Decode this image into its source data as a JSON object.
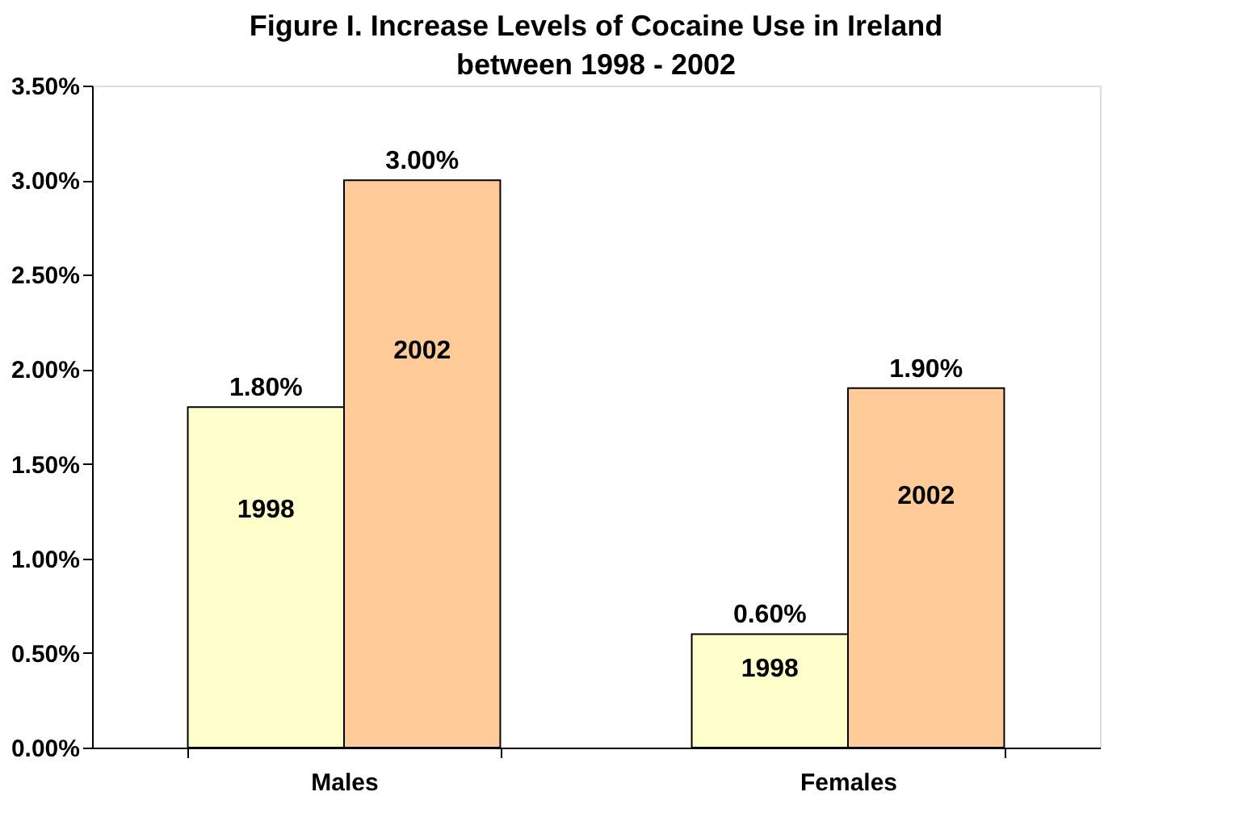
{
  "chart_data": {
    "type": "bar",
    "title": "Figure I. Increase Levels of Cocaine Use in Ireland between 1998 - 2002",
    "categories": [
      "Males",
      "Females"
    ],
    "series": [
      {
        "name": "1998",
        "color": "#ffffcc",
        "values": [
          1.8,
          0.6
        ],
        "value_labels": [
          "1.80%",
          "0.60%"
        ]
      },
      {
        "name": "2002",
        "color": "#ffcc99",
        "values": [
          3.0,
          1.9
        ],
        "value_labels": [
          "3.00%",
          "1.90%"
        ]
      }
    ],
    "ylim": [
      0,
      3.5
    ],
    "yticks": [
      {
        "value": 0,
        "label": "0.00%"
      },
      {
        "value": 0.5,
        "label": "0.50%"
      },
      {
        "value": 1,
        "label": "1.00%"
      },
      {
        "value": 1.5,
        "label": "1.50%"
      },
      {
        "value": 2,
        "label": "2.00%"
      },
      {
        "value": 2.5,
        "label": "2.50%"
      },
      {
        "value": 3,
        "label": "3.00%"
      },
      {
        "value": 3.5,
        "label": "3.50%"
      }
    ],
    "grid": false,
    "legend": false
  }
}
